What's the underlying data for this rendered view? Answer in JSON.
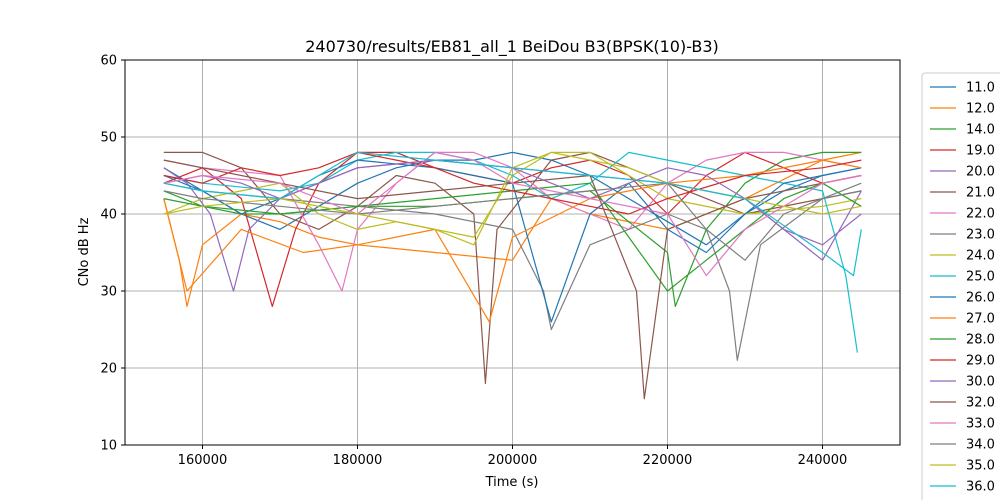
{
  "chart_data": {
    "type": "line",
    "title": "240730/results/EB81_all_1 BeiDou B3(BPSK(10)-B3)",
    "xlabel": "Time (s)",
    "ylabel": "CNo dB Hz",
    "xlim": [
      150000,
      250000
    ],
    "ylim": [
      10,
      60
    ],
    "x_ticks": [
      160000,
      180000,
      200000,
      220000,
      240000
    ],
    "y_ticks": [
      10,
      20,
      30,
      40,
      50,
      60
    ],
    "x_tick_labels": [
      "160000",
      "180000",
      "200000",
      "220000",
      "240000"
    ],
    "y_tick_labels": [
      "10",
      "20",
      "30",
      "40",
      "50",
      "60"
    ],
    "grid": true,
    "legend_position": "right, outside plot",
    "series": [
      {
        "name": "11.0",
        "color": "#1f77b4",
        "x": [
          155000,
          160000,
          165000,
          170000,
          175000,
          180000,
          185000,
          190000,
          195000,
          200000,
          205000,
          210000,
          215000,
          220000,
          225000,
          230000,
          235000,
          240000,
          245000
        ],
        "y": [
          46,
          43,
          40,
          38,
          41,
          44,
          46,
          47,
          47,
          48,
          47,
          45,
          42,
          39,
          36,
          40,
          43,
          45,
          46
        ]
      },
      {
        "name": "12.0",
        "color": "#ff7f0e",
        "x": [
          155000,
          157000,
          158000,
          160000,
          165000,
          170000,
          175000,
          180000,
          190000,
          200000,
          205000,
          210000,
          220000,
          230000,
          240000,
          245000
        ],
        "y": [
          42,
          34,
          28,
          36,
          40,
          39,
          37,
          36,
          35,
          34,
          42,
          40,
          38,
          42,
          47,
          48
        ]
      },
      {
        "name": "14.0",
        "color": "#2ca02c",
        "x": [
          155000,
          160000,
          165000,
          170000,
          180000,
          190000,
          200000,
          210000,
          220000,
          221000,
          225000,
          230000,
          235000,
          240000,
          245000
        ],
        "y": [
          43,
          41,
          40,
          40,
          41,
          41,
          42,
          43,
          35,
          28,
          38,
          44,
          47,
          48,
          48
        ]
      },
      {
        "name": "19.0",
        "color": "#d62728",
        "x": [
          155000,
          160000,
          165000,
          169000,
          172000,
          175000,
          180000,
          185000,
          190000,
          195000,
          200000,
          205000,
          210000,
          215000,
          220000,
          225000,
          230000,
          235000,
          240000,
          245000
        ],
        "y": [
          44,
          46,
          42,
          28,
          38,
          44,
          48,
          48,
          46,
          45,
          44,
          46,
          47,
          45,
          40,
          45,
          48,
          46,
          44,
          45
        ]
      },
      {
        "name": "20.0",
        "color": "#9467bd",
        "x": [
          155000,
          158000,
          161000,
          164000,
          166000,
          170000,
          175000,
          180000,
          190000,
          200000,
          210000,
          220000,
          225000,
          230000,
          235000,
          240000,
          245000
        ],
        "y": [
          46,
          44,
          40,
          30,
          38,
          42,
          44,
          46,
          47,
          46,
          45,
          44,
          43,
          42,
          38,
          34,
          43
        ]
      },
      {
        "name": "21.0",
        "color": "#8c564b",
        "x": [
          155000,
          160000,
          165000,
          170000,
          175000,
          180000,
          185000,
          190000,
          195000,
          196500,
          198000,
          205000,
          210000,
          215000,
          220000,
          225000,
          230000,
          240000,
          245000
        ],
        "y": [
          48,
          48,
          46,
          40,
          38,
          41,
          45,
          44,
          40,
          18,
          38,
          47,
          48,
          46,
          44,
          42,
          40,
          42,
          43
        ]
      },
      {
        "name": "22.0",
        "color": "#e377c2",
        "x": [
          155000,
          160000,
          170000,
          175000,
          178000,
          180000,
          185000,
          190000,
          195000,
          200000,
          205000,
          210000,
          215000,
          220000,
          225000,
          230000,
          235000,
          240000,
          245000
        ],
        "y": [
          47,
          46,
          45,
          36,
          30,
          38,
          44,
          48,
          48,
          46,
          42,
          40,
          38,
          44,
          47,
          48,
          48,
          47,
          46
        ]
      },
      {
        "name": "23.0",
        "color": "#7f7f7f",
        "x": [
          155000,
          160000,
          170000,
          180000,
          190000,
          200000,
          204000,
          205000,
          210000,
          220000,
          225000,
          228000,
          229000,
          232000,
          240000,
          245000
        ],
        "y": [
          44,
          43,
          42,
          41,
          40,
          38,
          30,
          25,
          36,
          40,
          38,
          30,
          21,
          36,
          42,
          44
        ]
      },
      {
        "name": "24.0",
        "color": "#bcbd22",
        "x": [
          155000,
          160000,
          165000,
          170000,
          175000,
          180000,
          185000,
          190000,
          195000,
          200000,
          205000,
          210000,
          215000,
          220000,
          230000,
          240000,
          245000
        ],
        "y": [
          40,
          42,
          43,
          44,
          40,
          38,
          39,
          38,
          37,
          45,
          48,
          48,
          45,
          42,
          40,
          41,
          42
        ]
      },
      {
        "name": "25.0",
        "color": "#17becf",
        "x": [
          155000,
          160000,
          170000,
          175000,
          180000,
          185000,
          190000,
          195000,
          200000,
          205000,
          210000,
          215000,
          220000,
          230000,
          240000,
          243000,
          244500
        ],
        "y": [
          45,
          44,
          43,
          44,
          47,
          48,
          48,
          47,
          45,
          42,
          44,
          48,
          47,
          45,
          43,
          32,
          22
        ]
      },
      {
        "name": "26.0",
        "color": "#1f77b4",
        "x": [
          155000,
          160000,
          165000,
          170000,
          175000,
          180000,
          190000,
          200000,
          205000,
          210000,
          215000,
          220000,
          225000,
          230000,
          235000,
          240000,
          245000
        ],
        "y": [
          45,
          43,
          40,
          42,
          45,
          47,
          46,
          44,
          26,
          40,
          44,
          38,
          35,
          40,
          44,
          45,
          46
        ]
      },
      {
        "name": "27.0",
        "color": "#ff7f0e",
        "x": [
          155000,
          158000,
          165000,
          173000,
          180000,
          190000,
          197000,
          200000,
          210000,
          220000,
          230000,
          240000,
          245000
        ],
        "y": [
          42,
          30,
          38,
          35,
          36,
          38,
          26,
          37,
          42,
          44,
          45,
          47,
          46
        ]
      },
      {
        "name": "28.0",
        "color": "#2ca02c",
        "x": [
          155000,
          160000,
          170000,
          180000,
          190000,
          200000,
          210000,
          220000,
          225000,
          230000,
          235000,
          240000,
          245000
        ],
        "y": [
          42,
          41,
          40,
          41,
          42,
          43,
          44,
          30,
          34,
          38,
          42,
          44,
          41
        ]
      },
      {
        "name": "29.0",
        "color": "#d62728",
        "x": [
          155000,
          160000,
          165000,
          170000,
          175000,
          180000,
          185000,
          190000,
          195000,
          200000,
          205000,
          210000,
          215000,
          220000,
          230000,
          240000,
          245000
        ],
        "y": [
          45,
          44,
          46,
          45,
          46,
          48,
          47,
          46,
          44,
          43,
          42,
          41,
          40,
          42,
          45,
          46,
          47
        ]
      },
      {
        "name": "30.0",
        "color": "#9467bd",
        "x": [
          155000,
          160000,
          165000,
          170000,
          180000,
          190000,
          200000,
          205000,
          210000,
          215000,
          220000,
          225000,
          230000,
          235000,
          240000,
          245000
        ],
        "y": [
          44,
          45,
          44,
          42,
          46,
          47,
          46,
          44,
          42,
          44,
          46,
          45,
          42,
          38,
          36,
          40
        ]
      },
      {
        "name": "32.0",
        "color": "#8c564b",
        "x": [
          155000,
          160000,
          170000,
          180000,
          190000,
          200000,
          210000,
          216000,
          217000,
          220000,
          230000,
          240000,
          245000
        ],
        "y": [
          47,
          46,
          44,
          42,
          43,
          44,
          45,
          30,
          16,
          38,
          42,
          44,
          45
        ]
      },
      {
        "name": "33.0",
        "color": "#e377c2",
        "x": [
          155000,
          160000,
          170000,
          180000,
          185000,
          190000,
          195000,
          200000,
          210000,
          220000,
          225000,
          230000,
          240000,
          245000
        ],
        "y": [
          44,
          45,
          44,
          40,
          44,
          48,
          47,
          44,
          42,
          40,
          32,
          38,
          44,
          45
        ]
      },
      {
        "name": "34.0",
        "color": "#7f7f7f",
        "x": [
          155000,
          160000,
          170000,
          180000,
          190000,
          200000,
          210000,
          220000,
          225000,
          230000,
          235000,
          240000,
          245000
        ],
        "y": [
          43,
          42,
          41,
          40,
          41,
          42,
          43,
          44,
          38,
          34,
          40,
          42,
          43
        ]
      },
      {
        "name": "35.0",
        "color": "#bcbd22",
        "x": [
          155000,
          160000,
          170000,
          180000,
          190000,
          195000,
          200000,
          205000,
          210000,
          215000,
          220000,
          230000,
          240000,
          245000
        ],
        "y": [
          40,
          41,
          42,
          40,
          38,
          36,
          46,
          48,
          47,
          46,
          44,
          42,
          40,
          41
        ]
      },
      {
        "name": "36.0",
        "color": "#17becf",
        "x": [
          155000,
          160000,
          170000,
          180000,
          190000,
          200000,
          210000,
          220000,
          230000,
          240000,
          244000,
          245000
        ],
        "y": [
          44,
          43,
          42,
          48,
          47,
          46,
          45,
          44,
          42,
          35,
          32,
          38
        ]
      }
    ]
  }
}
